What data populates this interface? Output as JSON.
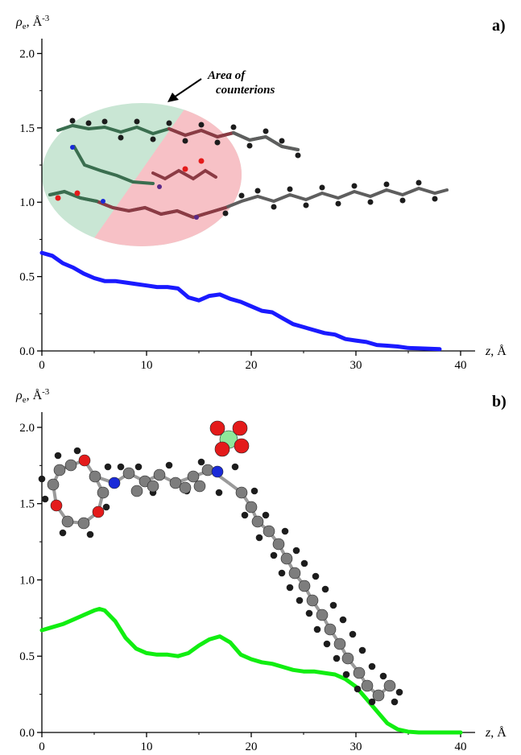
{
  "chart_data": [
    {
      "type": "line",
      "panel_label": "a)",
      "ylabel": "ρe, Å-3",
      "xlabel": "z, Å",
      "xlim": [
        0,
        40
      ],
      "ylim": [
        0,
        2.1
      ],
      "xticks": [
        "0",
        "10",
        "20",
        "30",
        "40"
      ],
      "yticks": [
        "0.0",
        "0.5",
        "1.0",
        "1.5",
        "2.0"
      ],
      "annotation": "Area of counterions",
      "series": [
        {
          "color": "#1a1aff",
          "x": [
            0,
            1,
            2,
            3,
            4,
            5,
            6,
            7,
            8,
            9,
            10,
            11,
            12,
            13,
            14,
            15,
            16,
            17,
            18,
            19,
            20,
            21,
            22,
            23,
            24,
            25,
            26,
            27,
            28,
            29,
            30,
            31,
            32,
            33,
            34,
            35,
            36,
            37,
            38
          ],
          "y": [
            0.66,
            0.64,
            0.59,
            0.56,
            0.52,
            0.49,
            0.47,
            0.47,
            0.46,
            0.45,
            0.44,
            0.43,
            0.43,
            0.42,
            0.36,
            0.34,
            0.37,
            0.38,
            0.35,
            0.33,
            0.3,
            0.27,
            0.26,
            0.22,
            0.18,
            0.16,
            0.14,
            0.12,
            0.11,
            0.08,
            0.07,
            0.06,
            0.04,
            0.035,
            0.03,
            0.02,
            0.018,
            0.015,
            0.012
          ]
        }
      ],
      "molecule_colors": {
        "green_tint": "#c9e6d4",
        "red_tint": "#f7c1c6"
      }
    },
    {
      "type": "line",
      "panel_label": "b)",
      "ylabel": "ρe, Å-3",
      "xlabel": "z, Å",
      "xlim": [
        0,
        40
      ],
      "ylim": [
        0,
        2.1
      ],
      "xticks": [
        "0",
        "10",
        "20",
        "30",
        "40"
      ],
      "yticks": [
        "0.0",
        "0.5",
        "1.0",
        "1.5",
        "2.0"
      ],
      "series": [
        {
          "color": "#11ee11",
          "x": [
            0,
            1,
            2,
            3,
            4,
            5,
            5.5,
            6,
            7,
            8,
            9,
            10,
            11,
            12,
            13,
            14,
            15,
            16,
            17,
            18,
            19,
            20,
            21,
            22,
            23,
            24,
            25,
            26,
            27,
            28,
            29,
            30,
            31,
            32,
            33,
            34,
            35,
            36,
            37,
            40
          ],
          "y": [
            0.67,
            0.69,
            0.71,
            0.74,
            0.77,
            0.8,
            0.81,
            0.8,
            0.73,
            0.62,
            0.55,
            0.52,
            0.51,
            0.51,
            0.5,
            0.52,
            0.57,
            0.61,
            0.63,
            0.59,
            0.51,
            0.48,
            0.46,
            0.45,
            0.43,
            0.41,
            0.4,
            0.4,
            0.39,
            0.38,
            0.35,
            0.3,
            0.22,
            0.14,
            0.06,
            0.02,
            0.005,
            0.0,
            0.0,
            0.0
          ]
        }
      ],
      "atom_colors": {
        "carbon": "#7d7d7d",
        "hydrogen": "#1c1c1c",
        "oxygen": "#e41b1b",
        "nitrogen": "#1a2ad8",
        "chlorine": "#8fe89a"
      }
    }
  ]
}
